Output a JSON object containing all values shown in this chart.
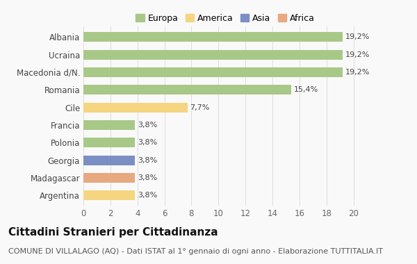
{
  "categories": [
    "Albania",
    "Ucraina",
    "Macedonia d/N.",
    "Romania",
    "Cile",
    "Francia",
    "Polonia",
    "Georgia",
    "Madagascar",
    "Argentina"
  ],
  "values": [
    19.2,
    19.2,
    19.2,
    15.4,
    7.7,
    3.8,
    3.8,
    3.8,
    3.8,
    3.8
  ],
  "labels": [
    "19,2%",
    "19,2%",
    "19,2%",
    "15,4%",
    "7,7%",
    "3,8%",
    "3,8%",
    "3,8%",
    "3,8%",
    "3,8%"
  ],
  "colors": [
    "#a8c888",
    "#a8c888",
    "#a8c888",
    "#a8c888",
    "#f5d580",
    "#a8c888",
    "#a8c888",
    "#7b8fc4",
    "#e8a880",
    "#f5d580"
  ],
  "legend_labels": [
    "Europa",
    "America",
    "Asia",
    "Africa"
  ],
  "legend_colors": [
    "#a8c888",
    "#f5d580",
    "#7b8fc4",
    "#e8a880"
  ],
  "title": "Cittadini Stranieri per Cittadinanza",
  "subtitle": "COMUNE DI VILLALAGO (AQ) - Dati ISTAT al 1° gennaio di ogni anno - Elaborazione TUTTITALIA.IT",
  "xlim": [
    0,
    21
  ],
  "xticks": [
    0,
    2,
    4,
    6,
    8,
    10,
    12,
    14,
    16,
    18,
    20
  ],
  "background_color": "#f9f9f9",
  "title_fontsize": 11,
  "subtitle_fontsize": 8,
  "label_fontsize": 8,
  "tick_fontsize": 8.5,
  "legend_fontsize": 9
}
